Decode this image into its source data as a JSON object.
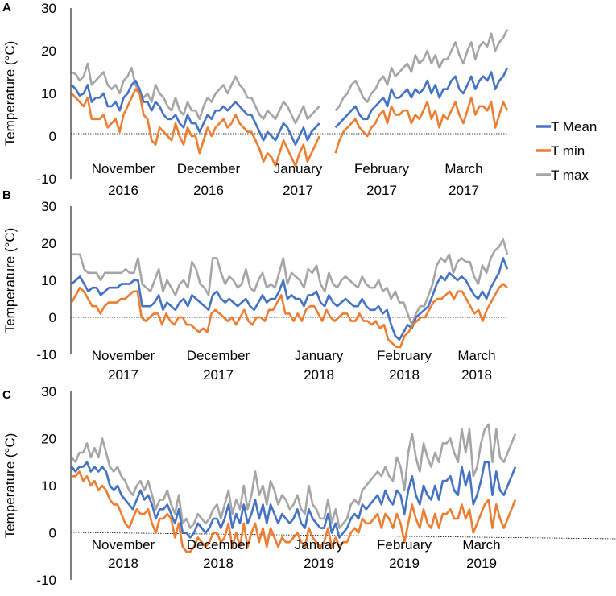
{
  "chart_data": [
    {
      "type": "line",
      "panel": "A",
      "ylabel": "Temperature (°C)",
      "ylim": [
        -10,
        30
      ],
      "yticks": [
        "30",
        "20",
        "10",
        "0",
        "-10"
      ],
      "months": [
        {
          "name": "November",
          "year": "2016"
        },
        {
          "name": "December",
          "year": "2016"
        },
        {
          "name": "January",
          "year": "2017"
        },
        {
          "name": "February",
          "year": "2017"
        },
        {
          "name": "March",
          "year": "2017"
        }
      ],
      "series": [
        {
          "name": "T max",
          "color": "#a5a5a5",
          "values": [
            15,
            14.5,
            13,
            14,
            17,
            12,
            13,
            14,
            15,
            12,
            11,
            12,
            10,
            13,
            14,
            16,
            12,
            10,
            9,
            10,
            8,
            12,
            10,
            9,
            7,
            6,
            9,
            6,
            5,
            8,
            6,
            6,
            4,
            7,
            9,
            8,
            10,
            11,
            12,
            10,
            12,
            14,
            12,
            11,
            9,
            9,
            7,
            5,
            4,
            6,
            5,
            4,
            6,
            8,
            7,
            5,
            3,
            5,
            7,
            4,
            5,
            6,
            7,
            null,
            null,
            null,
            6,
            7,
            9,
            10,
            12,
            13,
            11,
            9,
            8,
            10,
            11,
            13,
            14,
            12,
            16,
            14,
            15,
            16,
            17,
            15,
            19,
            17,
            18,
            20,
            17,
            19,
            16,
            18,
            18,
            20,
            22,
            19,
            17,
            20,
            22,
            18,
            21,
            22,
            21,
            24,
            20,
            22,
            23,
            25
          ]
        },
        {
          "name": "T Mean",
          "color": "#4472c4",
          "values": [
            12,
            11,
            9.5,
            10,
            12,
            8,
            9,
            9,
            10,
            7,
            7,
            8,
            6,
            9,
            10,
            12,
            13,
            11,
            8,
            8,
            6,
            8,
            7,
            5,
            4,
            4,
            5,
            3,
            2,
            5,
            3,
            3,
            1,
            3,
            5,
            4,
            6,
            6,
            7,
            6,
            7,
            8,
            7,
            6,
            5,
            5,
            3,
            1,
            -1,
            1,
            0,
            -1,
            1,
            3,
            2,
            0,
            -2,
            0,
            2,
            -1,
            1,
            2,
            3,
            null,
            null,
            null,
            2,
            3,
            4,
            5,
            6,
            7,
            5,
            4,
            4,
            6,
            7,
            8,
            9,
            7,
            11,
            9,
            9,
            10,
            11,
            9,
            11,
            10,
            11,
            13,
            10,
            12,
            9,
            11,
            11,
            13,
            14,
            11,
            10,
            12,
            14,
            11,
            13,
            14,
            13,
            15,
            11,
            13,
            14,
            16
          ]
        },
        {
          "name": "T min",
          "color": "#ed7d31",
          "values": [
            10,
            9,
            8,
            7,
            9,
            4,
            4,
            4,
            5,
            2,
            3,
            4,
            1,
            5,
            7,
            9,
            11,
            10,
            5,
            4,
            -1,
            -2,
            2,
            1,
            0,
            -1,
            3,
            0,
            -2,
            2,
            0,
            0,
            -4,
            -1,
            2,
            0,
            2,
            3,
            4,
            2,
            3,
            5,
            3,
            2,
            1,
            1,
            -1,
            -3,
            -6,
            -4,
            -5,
            -7,
            -4,
            -1,
            -3,
            -5,
            -7,
            -4,
            -2,
            -6,
            -4,
            -2,
            0,
            null,
            null,
            null,
            -4,
            -1,
            1,
            2,
            3,
            4,
            2,
            1,
            0,
            2,
            3,
            5,
            6,
            3,
            7,
            5,
            5,
            6,
            6,
            3,
            5,
            4,
            6,
            8,
            4,
            6,
            2,
            5,
            4,
            6,
            8,
            5,
            3,
            6,
            9,
            5,
            7,
            7,
            6,
            8,
            2,
            5,
            8,
            6
          ]
        }
      ]
    },
    {
      "type": "line",
      "panel": "B",
      "ylabel": "Temperature (°C)",
      "ylim": [
        -10,
        30
      ],
      "yticks": [
        "30",
        "20",
        "10",
        "0",
        "-10"
      ],
      "months": [
        {
          "name": "November",
          "year": "2017"
        },
        {
          "name": "December",
          "year": "2017"
        },
        {
          "name": "January",
          "year": "2018"
        },
        {
          "name": "February",
          "year": "2018"
        },
        {
          "name": "March",
          "year": "2018"
        }
      ],
      "series": [
        {
          "name": "T max",
          "color": "#a5a5a5",
          "values": [
            17,
            17,
            17,
            13,
            12,
            12,
            12,
            10,
            12,
            12,
            12,
            12,
            12,
            13,
            12,
            12,
            16,
            9,
            8,
            7,
            10,
            13,
            7,
            10,
            8,
            6,
            9,
            10,
            8,
            15,
            13,
            9,
            8,
            6,
            16,
            16,
            12,
            9,
            11,
            10,
            8,
            9,
            13,
            8,
            7,
            10,
            12,
            8,
            9,
            8,
            12,
            16,
            9,
            12,
            11,
            10,
            8,
            13,
            12,
            14,
            9,
            7,
            12,
            9,
            8,
            10,
            11,
            10,
            9,
            8,
            11,
            9,
            8,
            8,
            10,
            7,
            8,
            5,
            7,
            4,
            4,
            1,
            -2,
            1,
            3,
            3,
            6,
            9,
            14,
            16,
            15,
            17,
            12,
            15,
            16,
            15,
            15,
            11,
            9,
            14,
            12,
            16,
            18,
            19,
            21,
            17
          ]
        },
        {
          "name": "T Mean",
          "color": "#4472c4",
          "values": [
            9,
            10,
            11,
            9,
            7,
            8,
            8,
            6,
            7,
            8,
            8,
            8,
            9,
            9,
            9,
            10,
            10,
            3,
            3,
            3,
            4,
            6,
            2,
            4,
            3,
            2,
            4,
            5,
            3,
            6,
            5,
            4,
            3,
            2,
            6,
            7,
            5,
            4,
            5,
            4,
            3,
            4,
            5,
            3,
            2,
            4,
            6,
            4,
            5,
            5,
            7,
            10,
            5,
            6,
            5,
            5,
            3,
            6,
            6,
            7,
            4,
            3,
            6,
            4,
            3,
            4,
            5,
            4,
            3,
            3,
            5,
            3,
            2,
            2,
            3,
            1,
            2,
            -2,
            -5,
            -6,
            -4,
            -2,
            -3,
            0,
            1,
            2,
            3,
            6,
            9,
            11,
            10,
            12,
            11,
            10,
            11,
            10,
            8,
            6,
            5,
            7,
            5,
            8,
            10,
            12,
            16,
            13
          ]
        },
        {
          "name": "T min",
          "color": "#ed7d31",
          "values": [
            4,
            6,
            8,
            7,
            5,
            3,
            3,
            1,
            3,
            4,
            4,
            4,
            5,
            5,
            6,
            7,
            7,
            0,
            -1,
            0,
            1,
            1,
            -2,
            1,
            -1,
            -2,
            0,
            0,
            -2,
            -2,
            -3,
            -4,
            -3,
            -4,
            1,
            2,
            1,
            0,
            -1,
            0,
            -2,
            0,
            2,
            -1,
            -2,
            0,
            0,
            -1,
            2,
            2,
            4,
            6,
            1,
            1,
            -1,
            1,
            -1,
            2,
            3,
            3,
            1,
            -1,
            2,
            0,
            -1,
            0,
            1,
            1,
            -1,
            -1,
            1,
            -1,
            -1,
            -2,
            -1,
            -3,
            -2,
            -6,
            -7,
            -8,
            -8,
            -5,
            -4,
            -2,
            -1,
            0,
            0,
            2,
            4,
            5,
            5,
            6,
            7,
            5,
            7,
            7,
            5,
            3,
            1,
            2,
            -1,
            2,
            4,
            6,
            8,
            9,
            8
          ]
        }
      ]
    },
    {
      "type": "line",
      "panel": "C",
      "ylabel": "Temperature (°C)",
      "ylim": [
        -10,
        30
      ],
      "yticks": [
        "30",
        "20",
        "10",
        "0",
        "-10"
      ],
      "months": [
        {
          "name": "November",
          "year": "2018"
        },
        {
          "name": "December",
          "year": "2018"
        },
        {
          "name": "January",
          "year": "2019"
        },
        {
          "name": "February",
          "year": "2019"
        },
        {
          "name": "March",
          "year": "2019"
        }
      ],
      "series": [
        {
          "name": "T max",
          "color": "#a5a5a5",
          "values": [
            16,
            15,
            17,
            17,
            19,
            16,
            18,
            16,
            20,
            17,
            14,
            13,
            14,
            12,
            11,
            9,
            8,
            10,
            11,
            9,
            11,
            8,
            5,
            7,
            7,
            9,
            6,
            4,
            8,
            2,
            3,
            1,
            2,
            4,
            3,
            2,
            3,
            5,
            6,
            3,
            6,
            9,
            4,
            7,
            5,
            10,
            5,
            8,
            13,
            8,
            10,
            6,
            11,
            9,
            6,
            8,
            7,
            5,
            6,
            8,
            5,
            4,
            10,
            6,
            5,
            3,
            3,
            7,
            2,
            5,
            1,
            2,
            3,
            6,
            7,
            6,
            9,
            10,
            11,
            12,
            13,
            12,
            14,
            12,
            11,
            16,
            14,
            9,
            17,
            21,
            16,
            13,
            19,
            16,
            14,
            17,
            15,
            19,
            19,
            20,
            17,
            15,
            22,
            17,
            22,
            12,
            14,
            19,
            22,
            23,
            15,
            22,
            16,
            15,
            17,
            19,
            21
          ]
        },
        {
          "name": "T Mean",
          "color": "#4472c4",
          "values": [
            14,
            13,
            14,
            14,
            15,
            13,
            14,
            13,
            14,
            13,
            10,
            9,
            10,
            8,
            7,
            6,
            5,
            7,
            9,
            7,
            8,
            6,
            3,
            5,
            5,
            6,
            4,
            2,
            5,
            0,
            0,
            -1,
            0,
            2,
            1,
            0,
            1,
            3,
            3,
            1,
            3,
            6,
            1,
            4,
            2,
            6,
            2,
            4,
            7,
            3,
            6,
            2,
            6,
            4,
            2,
            4,
            3,
            2,
            3,
            5,
            2,
            1,
            5,
            3,
            2,
            1,
            1,
            4,
            0,
            2,
            -1,
            0,
            1,
            3,
            4,
            3,
            6,
            5,
            6,
            7,
            8,
            6,
            9,
            7,
            6,
            9,
            8,
            4,
            9,
            12,
            8,
            6,
            10,
            8,
            7,
            10,
            7,
            11,
            11,
            12,
            9,
            8,
            14,
            10,
            13,
            6,
            8,
            11,
            15,
            15,
            8,
            13,
            9,
            8,
            10,
            12,
            14
          ]
        },
        {
          "name": "T min",
          "color": "#ed7d31",
          "values": [
            12,
            12,
            13,
            11,
            12,
            10,
            11,
            9,
            10,
            9,
            7,
            6,
            6,
            4,
            2,
            1,
            3,
            5,
            4,
            4,
            5,
            2,
            0,
            3,
            3,
            4,
            3,
            -1,
            2,
            -3,
            -4,
            -4,
            -3,
            -1,
            -2,
            -3,
            -2,
            0,
            0,
            -2,
            -1,
            2,
            -3,
            0,
            -3,
            2,
            -3,
            0,
            2,
            -2,
            1,
            -3,
            1,
            -1,
            -3,
            -1,
            -2,
            -2,
            -1,
            0,
            -2,
            -3,
            1,
            -1,
            -2,
            -3,
            -2,
            1,
            -3,
            -1,
            -3,
            -2,
            -2,
            0,
            1,
            0,
            3,
            2,
            2,
            3,
            4,
            1,
            4,
            3,
            1,
            4,
            2,
            -2,
            2,
            6,
            3,
            1,
            5,
            2,
            1,
            4,
            1,
            4,
            4,
            5,
            3,
            3,
            6,
            3,
            5,
            0,
            2,
            4,
            6,
            7,
            1,
            6,
            3,
            1,
            3,
            5,
            7
          ]
        }
      ]
    }
  ]
}
